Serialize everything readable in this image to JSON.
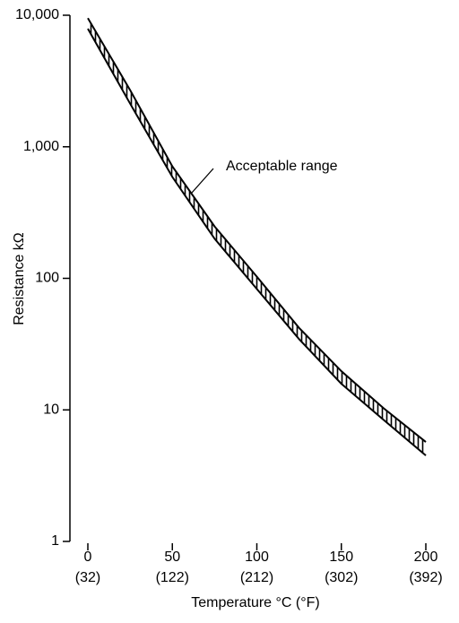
{
  "chart_data": {
    "type": "band",
    "log_y": true,
    "x_label": "Temperature °C (°F)",
    "y_label": "Resistance kΩ",
    "annotation": "Acceptable range",
    "x": [
      0,
      25,
      50,
      75,
      100,
      125,
      150,
      175,
      200
    ],
    "series": [
      {
        "color": "#000000",
        "values": [
          9500,
          2700,
          710,
          248,
          103,
          42,
          19.7,
          10.3,
          5.7
        ]
      },
      {
        "color": "#000000",
        "values": [
          7900,
          2130,
          590,
          200,
          83,
          34.5,
          15.8,
          8.4,
          4.5
        ]
      }
    ],
    "xlim": [
      0,
      200
    ],
    "xticks": [
      0,
      50,
      100,
      150,
      200
    ],
    "xtick_secondary_labels": [
      "(32)",
      "(122)",
      "(212)",
      "(302)",
      "(392)"
    ],
    "ylim": [
      1,
      10000
    ],
    "yticks": [
      1,
      10,
      100,
      {
        "value": 1000,
        "label": "1,000"
      },
      {
        "value": 10000,
        "label": "10,000"
      }
    ]
  }
}
